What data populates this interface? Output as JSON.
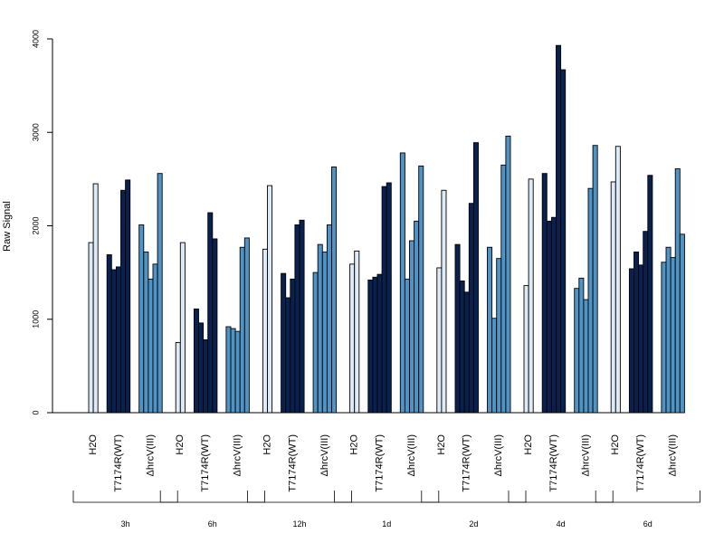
{
  "chart_data": {
    "type": "bar",
    "ylabel": "Raw Signal",
    "ylim": [
      0,
      4000
    ],
    "yticks": [
      "0",
      "1000",
      "2000",
      "3000",
      "4000"
    ],
    "treatments": [
      {
        "name": "H2O",
        "label": "H2O",
        "color": "#deebf7"
      },
      {
        "name": "T7174R(WT)",
        "label": "T7174R(WT)",
        "color": "#08214f"
      },
      {
        "name": "ΔhrcV(III)",
        "label": "ΔhrcV(III)",
        "color": "#4f94c5"
      }
    ],
    "timepoints": [
      {
        "label": "3h",
        "groups": [
          [
            1820,
            2450
          ],
          [
            1690,
            1530,
            1560,
            2380,
            2490
          ],
          [
            2010,
            1720,
            1430,
            1590,
            2560
          ]
        ]
      },
      {
        "label": "6h",
        "groups": [
          [
            750,
            1820
          ],
          [
            1110,
            960,
            780,
            2140,
            1860
          ],
          [
            920,
            900,
            870,
            1770,
            1870
          ]
        ]
      },
      {
        "label": "12h",
        "groups": [
          [
            1750,
            2430
          ],
          [
            1490,
            1230,
            1430,
            2010,
            2060
          ],
          [
            1500,
            1800,
            1720,
            2010,
            2630
          ]
        ]
      },
      {
        "label": "1d",
        "groups": [
          [
            1590,
            1730
          ],
          [
            1420,
            1450,
            1480,
            2420,
            2460
          ],
          [
            2780,
            1430,
            1840,
            2050,
            2640
          ]
        ]
      },
      {
        "label": "2d",
        "groups": [
          [
            1550,
            2380
          ],
          [
            1800,
            1410,
            1290,
            2240,
            2890
          ],
          [
            1770,
            1010,
            1650,
            2650,
            2960
          ]
        ]
      },
      {
        "label": "4d",
        "groups": [
          [
            1360,
            2500
          ],
          [
            2560,
            2050,
            2090,
            3930,
            3670
          ],
          [
            1330,
            1440,
            1210,
            2400,
            2860
          ]
        ]
      },
      {
        "label": "6d",
        "groups": [
          [
            2470,
            2850
          ],
          [
            1540,
            1720,
            1580,
            1940,
            2540
          ],
          [
            1610,
            1770,
            1660,
            2610,
            1910
          ]
        ]
      }
    ]
  }
}
